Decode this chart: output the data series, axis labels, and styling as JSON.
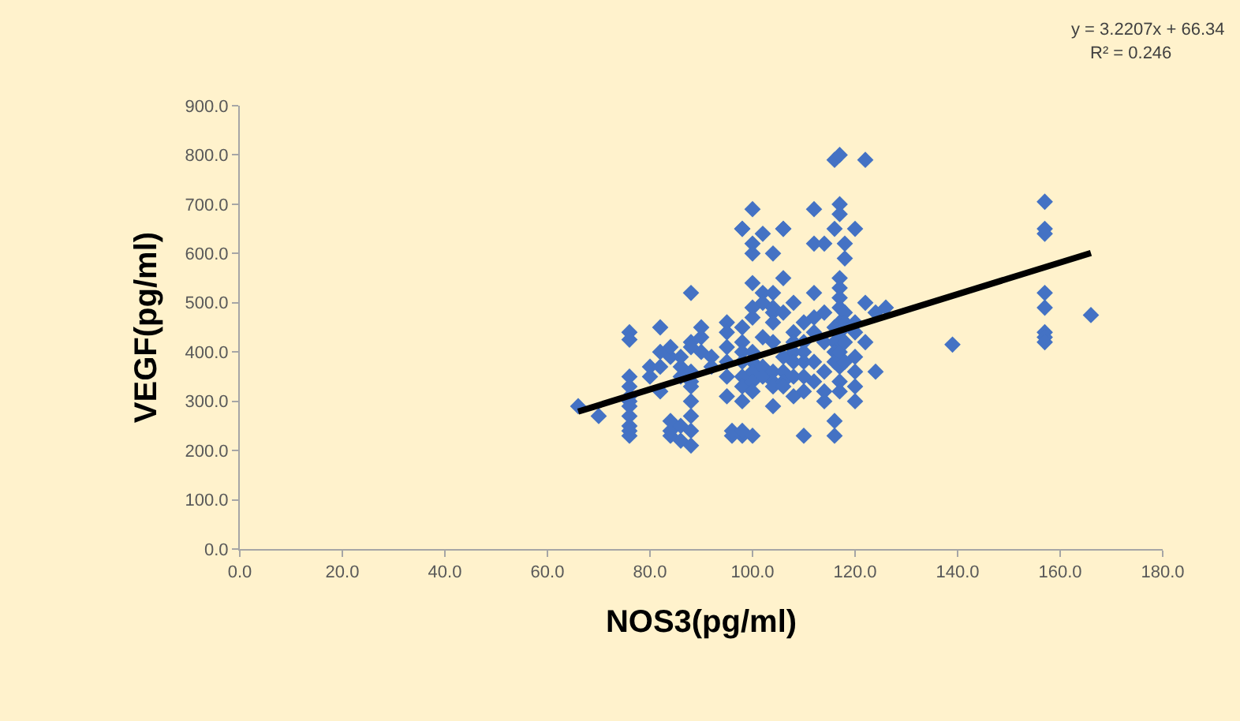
{
  "chart_data": {
    "type": "scatter",
    "xlabel": "NOS3(pg/ml)",
    "ylabel": "VEGF(pg/ml)",
    "grid": false,
    "xlim": [
      0,
      180
    ],
    "xticks": [
      {
        "value": 0,
        "label": "0.0"
      },
      {
        "value": 20,
        "label": "20.0"
      },
      {
        "value": 40,
        "label": "40.0"
      },
      {
        "value": 60,
        "label": "60.0"
      },
      {
        "value": 80,
        "label": "80.0"
      },
      {
        "value": 100,
        "label": "100.0"
      },
      {
        "value": 120,
        "label": "120.0"
      },
      {
        "value": 140,
        "label": "140.0"
      },
      {
        "value": 160,
        "label": "160.0"
      },
      {
        "value": 180,
        "label": "180.0"
      }
    ],
    "ylim": [
      0,
      900
    ],
    "yticks": [
      {
        "value": 0,
        "label": "0.0"
      },
      {
        "value": 100,
        "label": "100.0"
      },
      {
        "value": 200,
        "label": "200.0"
      },
      {
        "value": 300,
        "label": "300.0"
      },
      {
        "value": 400,
        "label": "400.0"
      },
      {
        "value": 500,
        "label": "500.0"
      },
      {
        "value": 600,
        "label": "600.0"
      },
      {
        "value": 700,
        "label": "700.0"
      },
      {
        "value": 800,
        "label": "800.0"
      },
      {
        "value": 900,
        "label": "900.0"
      }
    ],
    "annotations": [
      "y = 3.2207x + 66.34",
      "R² = 0.246"
    ],
    "series": [
      {
        "color": "#4472c4",
        "marker": "diamond",
        "x": [
          66,
          70,
          76,
          76,
          76,
          76,
          76,
          76,
          76,
          76,
          76,
          76,
          76,
          80,
          80,
          82,
          82,
          82,
          82,
          84,
          84,
          84,
          84,
          84,
          86,
          86,
          86,
          86,
          86,
          88,
          88,
          88,
          88,
          88,
          88,
          88,
          88,
          88,
          88,
          90,
          90,
          90,
          92,
          92,
          95,
          95,
          95,
          95,
          95,
          95,
          96,
          96,
          98,
          98,
          98,
          98,
          98,
          98,
          98,
          98,
          98,
          98,
          98,
          100,
          100,
          100,
          100,
          100,
          100,
          100,
          100,
          100,
          100,
          100,
          100,
          102,
          102,
          102,
          102,
          102,
          102,
          104,
          104,
          104,
          104,
          104,
          104,
          104,
          104,
          104,
          104,
          106,
          106,
          106,
          106,
          106,
          106,
          106,
          106,
          108,
          108,
          108,
          108,
          108,
          108,
          108,
          110,
          110,
          110,
          110,
          110,
          110,
          110,
          112,
          112,
          112,
          112,
          112,
          112,
          112,
          114,
          114,
          114,
          114,
          114,
          114,
          116,
          116,
          116,
          116,
          116,
          116,
          116,
          116,
          117,
          117,
          117,
          117,
          117,
          117,
          117,
          117,
          117,
          117,
          117,
          117,
          117,
          118,
          118,
          118,
          118,
          118,
          118,
          120,
          120,
          120,
          120,
          120,
          120,
          120,
          122,
          122,
          122,
          124,
          124,
          126,
          139,
          157,
          157,
          157,
          157,
          157,
          157,
          157,
          157,
          166
        ],
        "values": [
          290,
          270,
          440,
          425,
          350,
          330,
          310,
          300,
          290,
          270,
          250,
          240,
          230,
          370,
          350,
          400,
          450,
          370,
          320,
          230,
          240,
          260,
          390,
          410,
          370,
          350,
          390,
          250,
          220,
          520,
          420,
          410,
          360,
          340,
          330,
          300,
          270,
          240,
          210,
          430,
          400,
          450,
          390,
          370,
          460,
          440,
          410,
          380,
          350,
          310,
          230,
          240,
          650,
          650,
          450,
          420,
          400,
          380,
          350,
          330,
          300,
          230,
          240,
          690,
          600,
          620,
          540,
          490,
          470,
          400,
          380,
          360,
          340,
          320,
          230,
          640,
          520,
          500,
          430,
          370,
          350,
          600,
          520,
          490,
          480,
          460,
          420,
          360,
          340,
          330,
          290,
          650,
          650,
          550,
          480,
          390,
          360,
          340,
          330,
          500,
          440,
          420,
          400,
          380,
          350,
          310,
          460,
          420,
          400,
          380,
          350,
          320,
          230,
          690,
          620,
          520,
          470,
          440,
          380,
          340,
          620,
          480,
          420,
          360,
          320,
          300,
          790,
          650,
          450,
          420,
          400,
          380,
          230,
          260,
          800,
          700,
          680,
          550,
          530,
          510,
          490,
          460,
          440,
          400,
          370,
          340,
          320,
          620,
          590,
          480,
          460,
          420,
          380,
          650,
          460,
          440,
          390,
          360,
          330,
          300,
          790,
          500,
          420,
          360,
          480,
          490,
          415,
          705,
          650,
          640,
          520,
          490,
          440,
          430,
          420,
          475
        ]
      },
      {
        "type": "line",
        "color": "#000000",
        "x": [
          66,
          166
        ],
        "values": [
          279,
          601
        ]
      }
    ]
  }
}
